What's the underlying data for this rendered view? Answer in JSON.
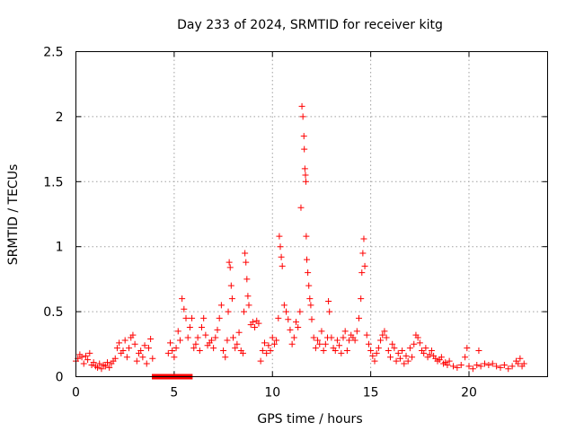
{
  "chart_data": {
    "type": "scatter",
    "title": "Day 233 of 2024, SRMTID for receiver kitg",
    "xlabel": "GPS time / hours",
    "ylabel": "SRMTID / TECUs",
    "xlim": [
      0,
      24
    ],
    "ylim": [
      0,
      2.5
    ],
    "xticks": [
      0,
      5,
      10,
      15,
      20
    ],
    "yticks": [
      0,
      0.5,
      1,
      1.5,
      2,
      2.5
    ],
    "xtick_labels": [
      "0",
      "5",
      "10",
      "15",
      "20"
    ],
    "ytick_labels": [
      "0",
      "0.5",
      "1",
      "1.5",
      "2",
      "2.5"
    ],
    "grid": true,
    "marker": "plus",
    "color": "#ff0000",
    "series": [
      {
        "name": "SRMTID",
        "points": [
          [
            0.0,
            0.12
          ],
          [
            0.1,
            0.14
          ],
          [
            0.2,
            0.17
          ],
          [
            0.3,
            0.15
          ],
          [
            0.4,
            0.1
          ],
          [
            0.5,
            0.16
          ],
          [
            0.6,
            0.13
          ],
          [
            0.7,
            0.18
          ],
          [
            0.8,
            0.09
          ],
          [
            0.9,
            0.11
          ],
          [
            1.0,
            0.08
          ],
          [
            1.1,
            0.07
          ],
          [
            1.2,
            0.1
          ],
          [
            1.3,
            0.06
          ],
          [
            1.4,
            0.09
          ],
          [
            1.5,
            0.08
          ],
          [
            1.6,
            0.11
          ],
          [
            1.7,
            0.07
          ],
          [
            1.8,
            0.1
          ],
          [
            1.9,
            0.12
          ],
          [
            2.0,
            0.14
          ],
          [
            2.1,
            0.22
          ],
          [
            2.2,
            0.26
          ],
          [
            2.3,
            0.18
          ],
          [
            2.4,
            0.2
          ],
          [
            2.5,
            0.28
          ],
          [
            2.6,
            0.15
          ],
          [
            2.7,
            0.22
          ],
          [
            2.8,
            0.3
          ],
          [
            2.9,
            0.32
          ],
          [
            3.0,
            0.25
          ],
          [
            3.1,
            0.12
          ],
          [
            3.2,
            0.18
          ],
          [
            3.3,
            0.2
          ],
          [
            3.4,
            0.15
          ],
          [
            3.5,
            0.24
          ],
          [
            3.6,
            0.1
          ],
          [
            3.7,
            0.22
          ],
          [
            3.8,
            0.29
          ],
          [
            3.9,
            0.14
          ],
          [
            4.0,
            0.0
          ],
          [
            4.2,
            0.0
          ],
          [
            4.4,
            0.0
          ],
          [
            4.6,
            0.0
          ],
          [
            4.8,
            0.0
          ],
          [
            5.0,
            0.0
          ],
          [
            5.2,
            0.0
          ],
          [
            5.4,
            0.0
          ],
          [
            5.6,
            0.0
          ],
          [
            5.8,
            0.0
          ],
          [
            4.7,
            0.18
          ],
          [
            4.8,
            0.26
          ],
          [
            4.9,
            0.2
          ],
          [
            5.0,
            0.15
          ],
          [
            5.1,
            0.22
          ],
          [
            5.2,
            0.35
          ],
          [
            5.3,
            0.28
          ],
          [
            5.4,
            0.6
          ],
          [
            5.5,
            0.52
          ],
          [
            5.6,
            0.45
          ],
          [
            5.7,
            0.3
          ],
          [
            5.8,
            0.38
          ],
          [
            5.9,
            0.45
          ],
          [
            6.0,
            0.22
          ],
          [
            6.1,
            0.25
          ],
          [
            6.2,
            0.3
          ],
          [
            6.3,
            0.2
          ],
          [
            6.4,
            0.38
          ],
          [
            6.5,
            0.45
          ],
          [
            6.6,
            0.32
          ],
          [
            6.7,
            0.24
          ],
          [
            6.8,
            0.26
          ],
          [
            6.9,
            0.28
          ],
          [
            7.0,
            0.22
          ],
          [
            7.1,
            0.3
          ],
          [
            7.2,
            0.36
          ],
          [
            7.3,
            0.45
          ],
          [
            7.4,
            0.55
          ],
          [
            7.5,
            0.2
          ],
          [
            7.6,
            0.15
          ],
          [
            7.7,
            0.28
          ],
          [
            7.75,
            0.5
          ],
          [
            7.8,
            0.88
          ],
          [
            7.85,
            0.84
          ],
          [
            7.9,
            0.7
          ],
          [
            7.95,
            0.6
          ],
          [
            8.0,
            0.3
          ],
          [
            8.1,
            0.22
          ],
          [
            8.2,
            0.25
          ],
          [
            8.3,
            0.34
          ],
          [
            8.4,
            0.2
          ],
          [
            8.5,
            0.18
          ],
          [
            8.55,
            0.5
          ],
          [
            8.6,
            0.95
          ],
          [
            8.65,
            0.88
          ],
          [
            8.7,
            0.75
          ],
          [
            8.75,
            0.62
          ],
          [
            8.8,
            0.55
          ],
          [
            8.9,
            0.4
          ],
          [
            9.0,
            0.42
          ],
          [
            9.1,
            0.38
          ],
          [
            9.2,
            0.43
          ],
          [
            9.3,
            0.41
          ],
          [
            9.4,
            0.12
          ],
          [
            9.5,
            0.2
          ],
          [
            9.6,
            0.26
          ],
          [
            9.7,
            0.18
          ],
          [
            9.8,
            0.24
          ],
          [
            9.9,
            0.2
          ],
          [
            10.0,
            0.3
          ],
          [
            10.1,
            0.25
          ],
          [
            10.2,
            0.28
          ],
          [
            10.3,
            0.45
          ],
          [
            10.35,
            1.08
          ],
          [
            10.4,
            1.0
          ],
          [
            10.45,
            0.92
          ],
          [
            10.5,
            0.85
          ],
          [
            10.6,
            0.55
          ],
          [
            10.7,
            0.5
          ],
          [
            10.8,
            0.44
          ],
          [
            10.9,
            0.36
          ],
          [
            11.0,
            0.25
          ],
          [
            11.1,
            0.3
          ],
          [
            11.2,
            0.42
          ],
          [
            11.3,
            0.38
          ],
          [
            11.4,
            0.5
          ],
          [
            11.45,
            1.3
          ],
          [
            11.5,
            2.08
          ],
          [
            11.55,
            2.0
          ],
          [
            11.6,
            1.85
          ],
          [
            11.62,
            1.75
          ],
          [
            11.65,
            1.6
          ],
          [
            11.68,
            1.55
          ],
          [
            11.7,
            1.5
          ],
          [
            11.72,
            1.08
          ],
          [
            11.75,
            0.9
          ],
          [
            11.8,
            0.8
          ],
          [
            11.85,
            0.7
          ],
          [
            11.9,
            0.6
          ],
          [
            11.95,
            0.55
          ],
          [
            12.0,
            0.44
          ],
          [
            12.1,
            0.3
          ],
          [
            12.2,
            0.22
          ],
          [
            12.3,
            0.28
          ],
          [
            12.4,
            0.25
          ],
          [
            12.5,
            0.35
          ],
          [
            12.6,
            0.2
          ],
          [
            12.7,
            0.25
          ],
          [
            12.8,
            0.3
          ],
          [
            12.85,
            0.58
          ],
          [
            12.9,
            0.5
          ],
          [
            13.0,
            0.3
          ],
          [
            13.1,
            0.22
          ],
          [
            13.2,
            0.2
          ],
          [
            13.3,
            0.28
          ],
          [
            13.4,
            0.24
          ],
          [
            13.5,
            0.18
          ],
          [
            13.6,
            0.3
          ],
          [
            13.7,
            0.35
          ],
          [
            13.8,
            0.2
          ],
          [
            13.9,
            0.28
          ],
          [
            14.0,
            0.32
          ],
          [
            14.1,
            0.3
          ],
          [
            14.2,
            0.28
          ],
          [
            14.3,
            0.35
          ],
          [
            14.4,
            0.45
          ],
          [
            14.5,
            0.6
          ],
          [
            14.55,
            0.8
          ],
          [
            14.6,
            0.95
          ],
          [
            14.65,
            1.06
          ],
          [
            14.7,
            0.85
          ],
          [
            14.8,
            0.32
          ],
          [
            14.9,
            0.25
          ],
          [
            15.0,
            0.2
          ],
          [
            15.1,
            0.16
          ],
          [
            15.2,
            0.12
          ],
          [
            15.3,
            0.18
          ],
          [
            15.4,
            0.22
          ],
          [
            15.5,
            0.28
          ],
          [
            15.6,
            0.32
          ],
          [
            15.7,
            0.35
          ],
          [
            15.8,
            0.3
          ],
          [
            15.9,
            0.2
          ],
          [
            16.0,
            0.15
          ],
          [
            16.1,
            0.25
          ],
          [
            16.2,
            0.22
          ],
          [
            16.3,
            0.12
          ],
          [
            16.4,
            0.18
          ],
          [
            16.5,
            0.14
          ],
          [
            16.6,
            0.2
          ],
          [
            16.7,
            0.1
          ],
          [
            16.8,
            0.16
          ],
          [
            16.9,
            0.12
          ],
          [
            17.0,
            0.22
          ],
          [
            17.1,
            0.15
          ],
          [
            17.2,
            0.25
          ],
          [
            17.3,
            0.32
          ],
          [
            17.4,
            0.3
          ],
          [
            17.5,
            0.26
          ],
          [
            17.6,
            0.2
          ],
          [
            17.7,
            0.18
          ],
          [
            17.8,
            0.22
          ],
          [
            17.9,
            0.15
          ],
          [
            18.0,
            0.17
          ],
          [
            18.1,
            0.2
          ],
          [
            18.2,
            0.16
          ],
          [
            18.3,
            0.14
          ],
          [
            18.4,
            0.12
          ],
          [
            18.5,
            0.13
          ],
          [
            18.6,
            0.15
          ],
          [
            18.7,
            0.1
          ],
          [
            18.8,
            0.11
          ],
          [
            18.9,
            0.09
          ],
          [
            19.0,
            0.12
          ],
          [
            19.2,
            0.08
          ],
          [
            19.4,
            0.07
          ],
          [
            19.6,
            0.09
          ],
          [
            19.8,
            0.15
          ],
          [
            19.9,
            0.22
          ],
          [
            20.0,
            0.08
          ],
          [
            20.2,
            0.06
          ],
          [
            20.4,
            0.09
          ],
          [
            20.5,
            0.2
          ],
          [
            20.6,
            0.08
          ],
          [
            20.8,
            0.1
          ],
          [
            21.0,
            0.09
          ],
          [
            21.2,
            0.1
          ],
          [
            21.4,
            0.08
          ],
          [
            21.6,
            0.07
          ],
          [
            21.8,
            0.09
          ],
          [
            22.0,
            0.06
          ],
          [
            22.2,
            0.08
          ],
          [
            22.4,
            0.12
          ],
          [
            22.5,
            0.1
          ],
          [
            22.6,
            0.14
          ],
          [
            22.7,
            0.08
          ],
          [
            22.8,
            0.1
          ]
        ]
      }
    ]
  }
}
